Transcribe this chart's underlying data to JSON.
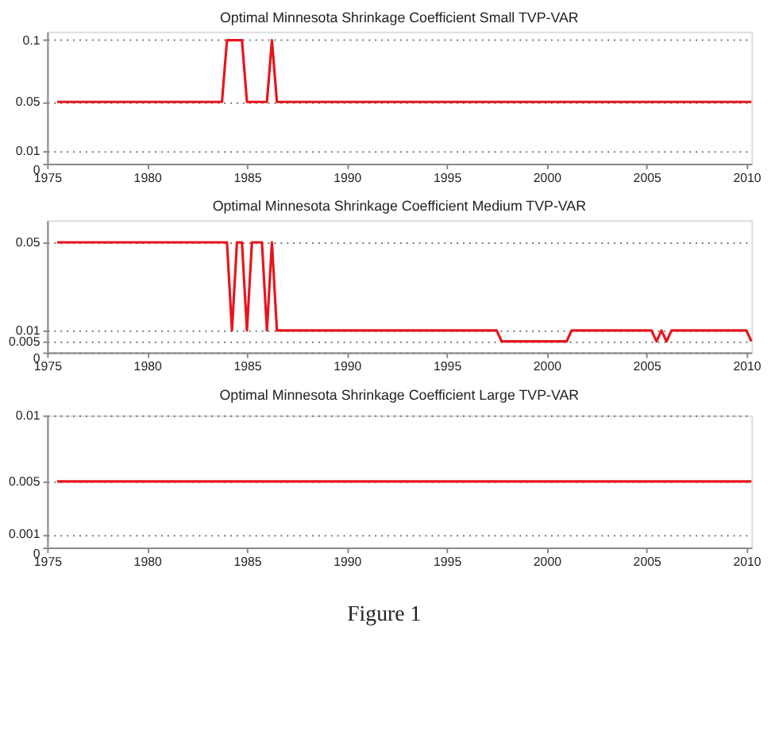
{
  "chart_data": [
    {
      "type": "line",
      "title": "Optimal Minnesota Shrinkage Coefficient Small TVP-VAR",
      "grid": "y",
      "line_style": "solid",
      "xlim": [
        1975,
        2010.25
      ],
      "xticks": [
        1975,
        1980,
        1985,
        1990,
        1995,
        2000,
        2005,
        2010
      ],
      "ylim": [
        0,
        0.107
      ],
      "yticks": [
        0,
        0.01,
        0.05,
        0.1
      ],
      "series": [
        {
          "color": "#e8141c",
          "x": [
            1975.5,
            1983.75,
            1984.0,
            1984.75,
            1985.0,
            1986.0,
            1986.25,
            1986.5,
            2010.25
          ],
          "values": [
            0.05,
            0.05,
            0.1,
            0.1,
            0.05,
            0.05,
            0.1,
            0.05,
            0.05
          ]
        }
      ]
    },
    {
      "type": "line",
      "title": "Optimal Minnesota Shrinkage Coefficient Medium TVP-VAR",
      "grid": "y",
      "line_style": "solid",
      "xlim": [
        1975,
        2010.25
      ],
      "xticks": [
        1975,
        1980,
        1985,
        1990,
        1995,
        2000,
        2005,
        2010
      ],
      "ylim": [
        0,
        0.06
      ],
      "yticks": [
        0,
        0.005,
        0.01,
        0.05
      ],
      "series": [
        {
          "color": "#e8141c",
          "x": [
            1975.5,
            1984.0,
            1984.25,
            1984.5,
            1984.75,
            1985.0,
            1985.25,
            1985.75,
            1986.0,
            1986.25,
            1986.5,
            1997.5,
            1997.75,
            2001.0,
            2001.25,
            2005.25,
            2005.5,
            2005.75,
            2006.0,
            2006.25,
            2010.0,
            2010.25
          ],
          "values": [
            0.05,
            0.05,
            0.01,
            0.05,
            0.05,
            0.01,
            0.05,
            0.05,
            0.01,
            0.05,
            0.01,
            0.01,
            0.005,
            0.005,
            0.01,
            0.01,
            0.005,
            0.01,
            0.005,
            0.01,
            0.01,
            0.005
          ]
        }
      ]
    },
    {
      "type": "line",
      "title": "Optimal Minnesota Shrinkage Coefficient Large TVP-VAR",
      "grid": "y",
      "line_style": "solid",
      "xlim": [
        1975,
        2010.25
      ],
      "xticks": [
        1975,
        1980,
        1985,
        1990,
        1995,
        2000,
        2005,
        2010
      ],
      "ylim": [
        0,
        0.01
      ],
      "yticks": [
        0,
        0.001,
        0.005,
        0.01
      ],
      "series": [
        {
          "color": "#e8141c",
          "x": [
            1975.5,
            2010.25
          ],
          "values": [
            0.005,
            0.005
          ]
        }
      ],
      "annotations": [
        "Figure 1"
      ]
    }
  ]
}
